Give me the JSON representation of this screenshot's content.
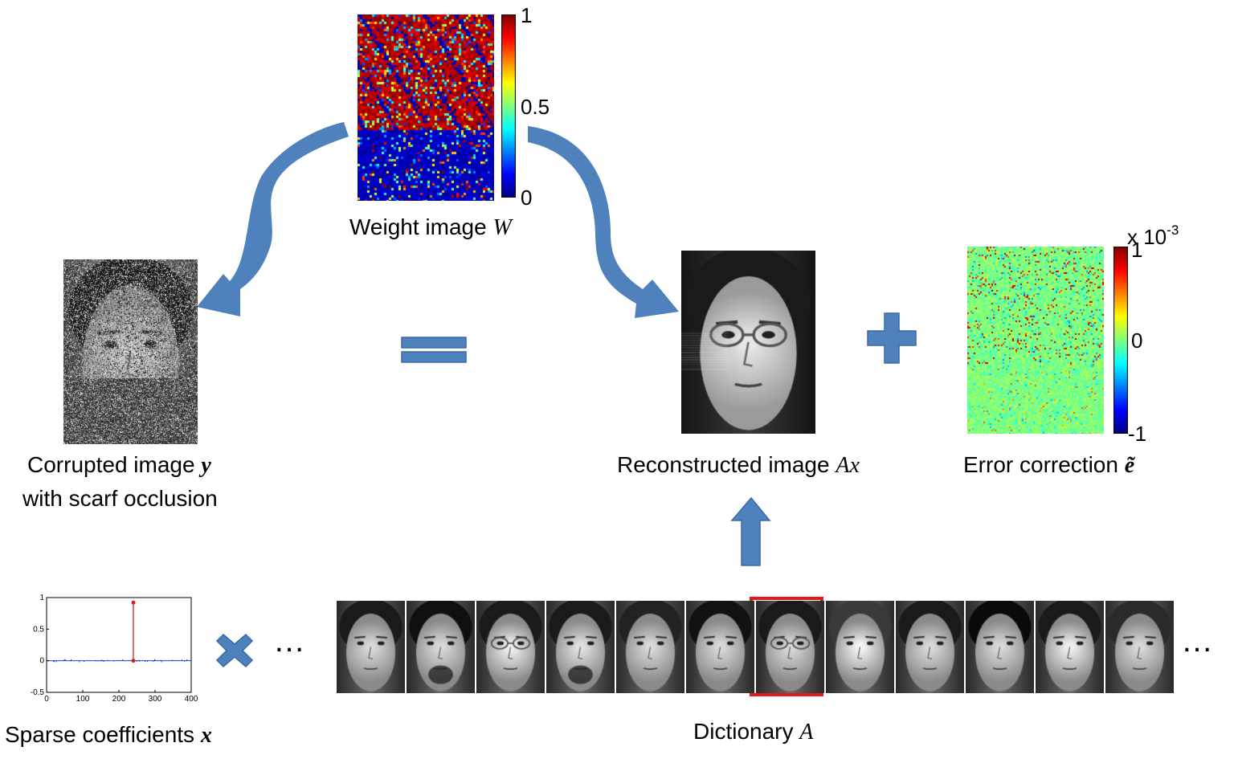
{
  "weight_image": {
    "label": "Weight image",
    "symbol": "W",
    "colorbar_ticks": [
      "1",
      "0.5",
      "0"
    ]
  },
  "corrupted_image": {
    "label_line1": "Corrupted image",
    "symbol": "y",
    "label_line2": "with scarf occlusion"
  },
  "reconstructed_image": {
    "label": "Reconstructed image",
    "symbol": "Ax"
  },
  "error_correction": {
    "label": "Error correction",
    "symbol": "ẽ",
    "scale_label": "x 10",
    "scale_exponent": "-3",
    "colorbar_ticks": [
      "1",
      "0",
      "-1"
    ]
  },
  "sparse_coefficients": {
    "label": "Sparse coefficients",
    "symbol": "x"
  },
  "dictionary": {
    "label": "Dictionary",
    "symbol": "A",
    "ellipsis": "…",
    "face_count": 12,
    "highlighted_index": 6,
    "highlight_color": "#e31a1c"
  },
  "operators": {
    "equals": "equals-sign",
    "plus": "plus-sign",
    "times": "times-sign",
    "color": "#4f81bd"
  },
  "chart_data": {
    "type": "scatter",
    "xlim": [
      0,
      400
    ],
    "ylim": [
      -0.5,
      1
    ],
    "xticks": [
      "0",
      "100",
      "200",
      "300",
      "400"
    ],
    "yticks": [
      "1",
      "0.5",
      "0",
      "-0.5"
    ],
    "series": [
      {
        "x": [
          240
        ],
        "y": [
          0.92
        ]
      }
    ]
  }
}
